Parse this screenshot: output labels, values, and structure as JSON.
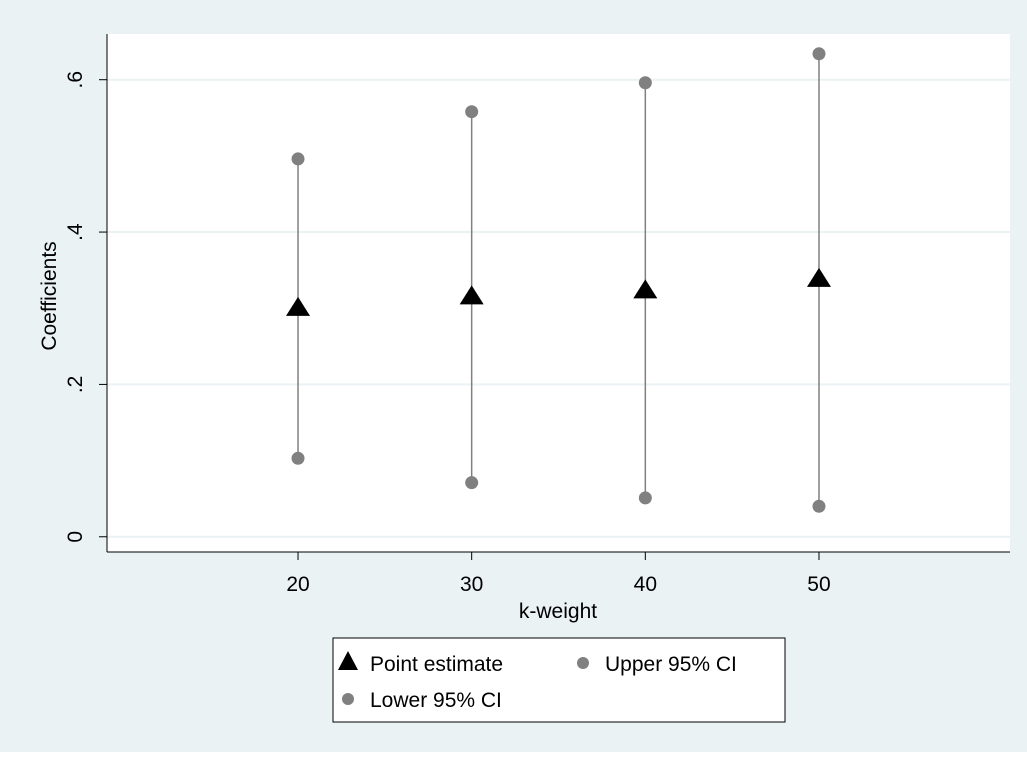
{
  "chart_data": {
    "type": "scatter",
    "xlabel": "k-weight",
    "ylabel": "Coefficients",
    "x_ticks": [
      20,
      30,
      40,
      50
    ],
    "x_tick_labels": [
      "20",
      "30",
      "40",
      "50"
    ],
    "y_ticks": [
      0,
      0.2,
      0.4,
      0.6
    ],
    "y_tick_labels": [
      "0",
      ".2",
      ".4",
      ".6"
    ],
    "xlim": [
      9,
      61
    ],
    "ylim": [
      -0.02,
      0.66
    ],
    "grid": true,
    "legend_position": "bottom",
    "series": [
      {
        "name": "Point estimate",
        "marker": "triangle",
        "color": "#000000",
        "x": [
          20,
          30,
          40,
          50
        ],
        "y": [
          0.3,
          0.315,
          0.323,
          0.338
        ]
      },
      {
        "name": "Upper 95% CI",
        "marker": "circle",
        "color": "#808080",
        "x": [
          20,
          30,
          40,
          50
        ],
        "y": [
          0.496,
          0.558,
          0.596,
          0.634
        ]
      },
      {
        "name": "Lower 95% CI",
        "marker": "circle",
        "color": "#808080",
        "x": [
          20,
          30,
          40,
          50
        ],
        "y": [
          0.103,
          0.071,
          0.051,
          0.04
        ]
      }
    ],
    "colors": {
      "outer_background": "#eaf2f3",
      "plot_background": "#ffffff",
      "gridline": "#eaf2f3",
      "ci_line": "#808080"
    }
  }
}
